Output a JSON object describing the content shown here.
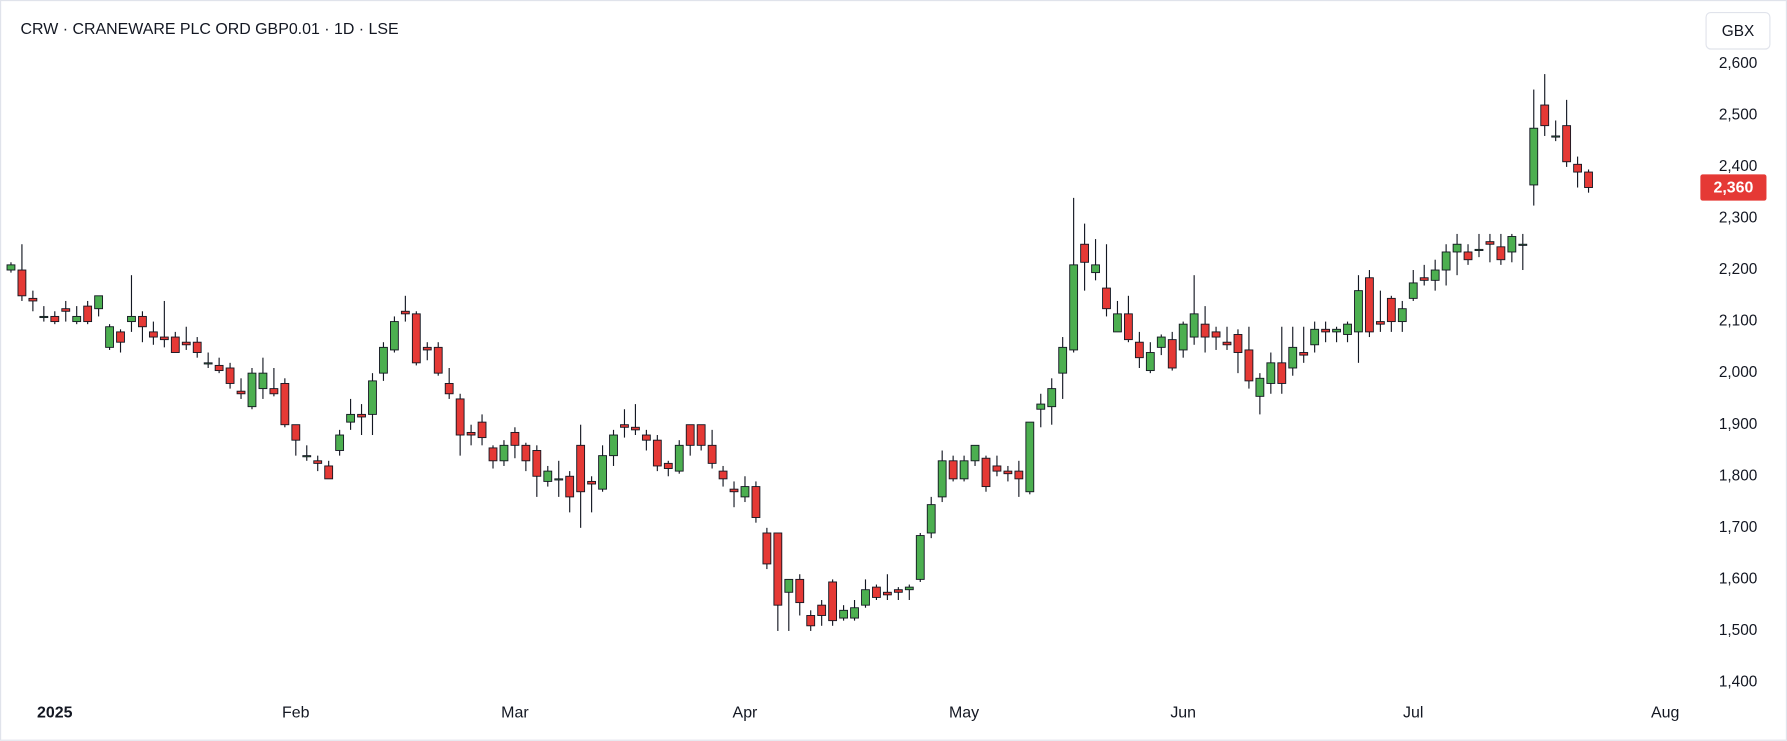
{
  "chart_data": {
    "type": "candlestick",
    "title": "CRW · CRANEWARE PLC ORD GBP0.01 · 1D · LSE",
    "currency": "GBX",
    "up_color": "#4caf50",
    "down_color": "#e53935",
    "wick_color": "#131722",
    "open": [
      2200,
      2200,
      2145,
      2110,
      2110,
      2125,
      2100,
      2130,
      2125,
      2050,
      2080,
      2100,
      2110,
      2080,
      2070,
      2070,
      2060,
      2060,
      2020,
      2015,
      2010,
      1965,
      1935,
      1970,
      1970,
      1980,
      1900,
      1840,
      1830,
      1820,
      1850,
      1905,
      1920,
      1920,
      2000,
      2045,
      2120,
      2115,
      2050,
      2050,
      1980,
      1950,
      1885,
      1905,
      1855,
      1830,
      1885,
      1860,
      1850,
      1790,
      1795,
      1800,
      1860,
      1790,
      1775,
      1840,
      1900,
      1895,
      1880,
      1870,
      1825,
      1810,
      1900,
      1900,
      1860,
      1810,
      1775,
      1760,
      1780,
      1690,
      1690,
      1575,
      1600,
      1530,
      1550,
      1595,
      1525,
      1525,
      1550,
      1585,
      1575,
      1580,
      1580,
      1600,
      1690,
      1760,
      1830,
      1795,
      1830,
      1835,
      1820,
      1810,
      1810,
      1770,
      1930,
      1935,
      2000,
      2045,
      2250,
      2195,
      2165,
      2080,
      2115,
      2060,
      2005,
      2050,
      2065,
      2045,
      2070,
      2095,
      2080,
      2060,
      2075,
      2045,
      1955,
      1980,
      2020,
      2010,
      2040,
      2055,
      2085,
      2080,
      2075,
      2080,
      2185,
      2100,
      2145,
      2100,
      2145,
      2185,
      2180,
      2200,
      2235,
      2235,
      2240,
      2255,
      2245,
      2235,
      2250,
      2365,
      2520,
      2460,
      2480,
      2405,
      2390
    ],
    "high": [
      2215,
      2250,
      2160,
      2130,
      2120,
      2140,
      2130,
      2140,
      2150,
      2095,
      2085,
      2190,
      2120,
      2100,
      2140,
      2080,
      2090,
      2070,
      2040,
      2030,
      2020,
      1990,
      2010,
      2030,
      2010,
      1990,
      1900,
      1860,
      1840,
      1830,
      1890,
      1950,
      1940,
      2000,
      2060,
      2110,
      2150,
      2120,
      2060,
      2060,
      2010,
      1960,
      1900,
      1920,
      1860,
      1870,
      1895,
      1865,
      1860,
      1820,
      1830,
      1810,
      1900,
      1800,
      1860,
      1890,
      1930,
      1940,
      1890,
      1880,
      1830,
      1870,
      1900,
      1900,
      1890,
      1820,
      1790,
      1800,
      1790,
      1700,
      1690,
      1600,
      1610,
      1540,
      1560,
      1600,
      1550,
      1560,
      1600,
      1590,
      1610,
      1585,
      1590,
      1690,
      1760,
      1850,
      1840,
      1840,
      1860,
      1840,
      1840,
      1820,
      1830,
      1905,
      1960,
      1990,
      2070,
      2340,
      2290,
      2260,
      2250,
      2140,
      2150,
      2080,
      2060,
      2075,
      2080,
      2100,
      2190,
      2130,
      2090,
      2090,
      2085,
      2090,
      2000,
      2040,
      2090,
      2090,
      2090,
      2100,
      2100,
      2090,
      2100,
      2190,
      2200,
      2160,
      2150,
      2140,
      2200,
      2210,
      2220,
      2250,
      2270,
      2250,
      2270,
      2270,
      2270,
      2270,
      2270,
      2550,
      2580,
      2490,
      2530,
      2420,
      2395
    ],
    "low": [
      2195,
      2140,
      2120,
      2100,
      2095,
      2100,
      2095,
      2095,
      2110,
      2045,
      2040,
      2080,
      2060,
      2055,
      2050,
      2040,
      2045,
      2030,
      2010,
      2000,
      1970,
      1950,
      1930,
      1950,
      1955,
      1895,
      1840,
      1830,
      1810,
      1795,
      1840,
      1890,
      1880,
      1880,
      1985,
      2040,
      2100,
      2015,
      2025,
      1995,
      1950,
      1840,
      1860,
      1860,
      1815,
      1820,
      1835,
      1810,
      1760,
      1780,
      1760,
      1730,
      1700,
      1730,
      1770,
      1820,
      1875,
      1880,
      1850,
      1810,
      1800,
      1805,
      1840,
      1850,
      1815,
      1780,
      1740,
      1750,
      1710,
      1620,
      1500,
      1500,
      1530,
      1500,
      1510,
      1510,
      1520,
      1520,
      1545,
      1560,
      1560,
      1560,
      1560,
      1595,
      1680,
      1750,
      1790,
      1790,
      1820,
      1770,
      1800,
      1790,
      1760,
      1765,
      1895,
      1900,
      1950,
      2040,
      2160,
      2180,
      2110,
      2080,
      2060,
      2010,
      2000,
      2035,
      2005,
      2030,
      2055,
      2040,
      2045,
      2045,
      2000,
      1970,
      1920,
      1960,
      1960,
      1995,
      2020,
      2040,
      2060,
      2060,
      2060,
      2020,
      2070,
      2080,
      2080,
      2080,
      2140,
      2170,
      2160,
      2170,
      2190,
      2210,
      2225,
      2215,
      2210,
      2215,
      2200,
      2325,
      2460,
      2450,
      2400,
      2360,
      2350
    ],
    "close": [
      2210,
      2150,
      2140,
      2110,
      2100,
      2120,
      2110,
      2100,
      2150,
      2090,
      2060,
      2110,
      2090,
      2070,
      2065,
      2040,
      2055,
      2040,
      2020,
      2005,
      1980,
      1960,
      2000,
      2000,
      1960,
      1900,
      1870,
      1840,
      1825,
      1795,
      1880,
      1920,
      1915,
      1985,
      2050,
      2100,
      2115,
      2020,
      2045,
      2000,
      1960,
      1880,
      1880,
      1875,
      1830,
      1860,
      1860,
      1830,
      1800,
      1810,
      1795,
      1760,
      1770,
      1785,
      1840,
      1880,
      1895,
      1890,
      1870,
      1820,
      1815,
      1860,
      1860,
      1860,
      1825,
      1795,
      1770,
      1780,
      1720,
      1630,
      1550,
      1600,
      1555,
      1510,
      1530,
      1520,
      1540,
      1545,
      1580,
      1565,
      1570,
      1575,
      1585,
      1685,
      1745,
      1830,
      1795,
      1830,
      1860,
      1780,
      1810,
      1805,
      1795,
      1905,
      1940,
      1970,
      2050,
      2210,
      2215,
      2210,
      2125,
      2115,
      2065,
      2030,
      2040,
      2070,
      2010,
      2095,
      2115,
      2070,
      2070,
      2055,
      2040,
      1985,
      1990,
      2020,
      1980,
      2050,
      2035,
      2085,
      2080,
      2085,
      2095,
      2160,
      2080,
      2095,
      2100,
      2125,
      2175,
      2180,
      2200,
      2235,
      2250,
      2220,
      2240,
      2250,
      2220,
      2265,
      2250,
      2475,
      2480,
      2460,
      2410,
      2390,
      2360
    ],
    "xlim": [
      -1,
      154
    ],
    "xticks": [
      {
        "value": 4,
        "label": "2025"
      },
      {
        "value": 26,
        "label": "Feb"
      },
      {
        "value": 46,
        "label": "Mar"
      },
      {
        "value": 67,
        "label": "Apr"
      },
      {
        "value": 87,
        "label": "May"
      },
      {
        "value": 107,
        "label": "Jun"
      },
      {
        "value": 128,
        "label": "Jul"
      },
      {
        "value": 151,
        "label": "Aug"
      }
    ],
    "ylim": [
      1371,
      2706
    ],
    "yticks": [
      {
        "value": 1400,
        "label": "1,400"
      },
      {
        "value": 1500,
        "label": "1,500"
      },
      {
        "value": 1600,
        "label": "1,600"
      },
      {
        "value": 1700,
        "label": "1,700"
      },
      {
        "value": 1800,
        "label": "1,800"
      },
      {
        "value": 1900,
        "label": "1,900"
      },
      {
        "value": 2000,
        "label": "2,000"
      },
      {
        "value": 2100,
        "label": "2,100"
      },
      {
        "value": 2200,
        "label": "2,200"
      },
      {
        "value": 2300,
        "label": "2,300"
      },
      {
        "value": 2400,
        "label": "2,400"
      },
      {
        "value": 2500,
        "label": "2,500"
      },
      {
        "value": 2600,
        "label": "2,600"
      }
    ],
    "last_price": {
      "value": 2360,
      "label": "2,360"
    },
    "grid": false
  }
}
